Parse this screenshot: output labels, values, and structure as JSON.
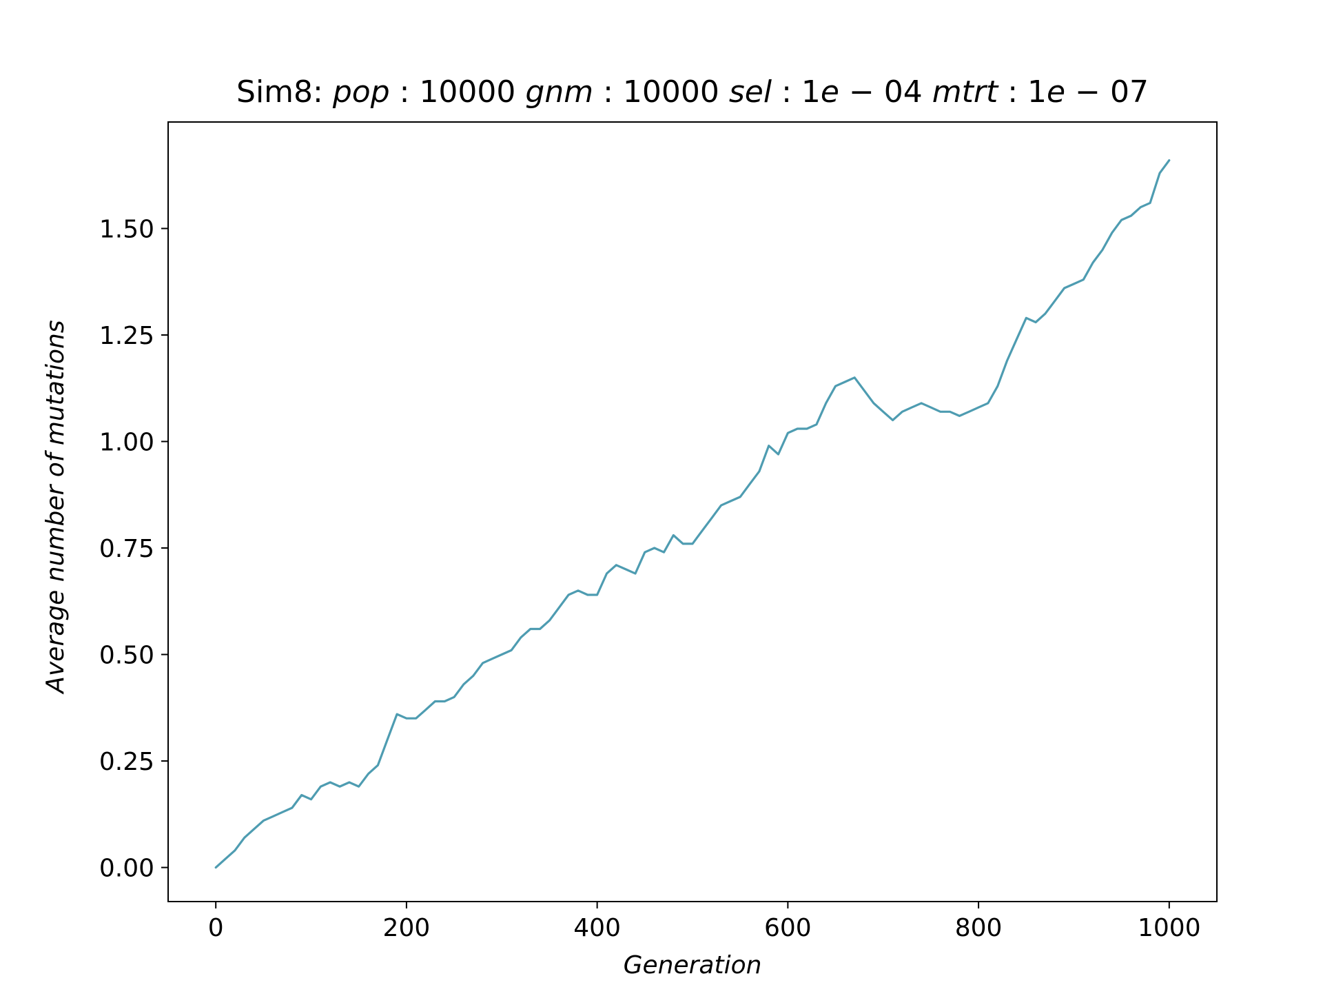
{
  "chart_data": {
    "type": "line",
    "title": {
      "parts": [
        {
          "text": "Sim8: ",
          "italic": false
        },
        {
          "text": "pop",
          "italic": true
        },
        {
          "text": " : 10000 ",
          "italic": false
        },
        {
          "text": "gnm",
          "italic": true
        },
        {
          "text": " : 10000 ",
          "italic": false
        },
        {
          "text": "sel",
          "italic": true
        },
        {
          "text": " : 1",
          "italic": false
        },
        {
          "text": "e",
          "italic": true
        },
        {
          "text": " − 04 ",
          "italic": false
        },
        {
          "text": "mtrt",
          "italic": true
        },
        {
          "text": " : 1",
          "italic": false
        },
        {
          "text": "e",
          "italic": true
        },
        {
          "text": " − 07",
          "italic": false
        }
      ]
    },
    "xlabel": "Generation",
    "ylabel": "Average number of mutations",
    "xlim": [
      -50,
      1050
    ],
    "ylim": [
      -0.08,
      1.75
    ],
    "xticks": [
      0,
      200,
      400,
      600,
      800,
      1000
    ],
    "xtick_labels": [
      "0",
      "200",
      "400",
      "600",
      "800",
      "1000"
    ],
    "yticks": [
      0.0,
      0.25,
      0.5,
      0.75,
      1.0,
      1.25,
      1.5
    ],
    "ytick_labels": [
      "0.00",
      "0.25",
      "0.50",
      "0.75",
      "1.00",
      "1.25",
      "1.50"
    ],
    "grid": false,
    "line_color": "#4e9cb1",
    "series": [
      {
        "x": [
          0,
          10,
          20,
          30,
          40,
          50,
          60,
          70,
          80,
          90,
          100,
          110,
          120,
          130,
          140,
          150,
          160,
          170,
          180,
          190,
          200,
          210,
          220,
          230,
          240,
          250,
          260,
          270,
          280,
          290,
          300,
          310,
          320,
          330,
          340,
          350,
          360,
          370,
          380,
          390,
          400,
          410,
          420,
          430,
          440,
          450,
          460,
          470,
          480,
          490,
          500,
          510,
          520,
          530,
          540,
          550,
          560,
          570,
          580,
          590,
          600,
          610,
          620,
          630,
          640,
          650,
          660,
          670,
          680,
          690,
          700,
          710,
          720,
          730,
          740,
          750,
          760,
          770,
          780,
          790,
          800,
          810,
          820,
          830,
          840,
          850,
          860,
          870,
          880,
          890,
          900,
          910,
          920,
          930,
          940,
          950,
          960,
          970,
          980,
          990,
          1000
        ],
        "y": [
          0.0,
          0.02,
          0.04,
          0.07,
          0.09,
          0.11,
          0.12,
          0.13,
          0.14,
          0.17,
          0.16,
          0.19,
          0.2,
          0.19,
          0.2,
          0.19,
          0.22,
          0.24,
          0.3,
          0.36,
          0.35,
          0.35,
          0.37,
          0.39,
          0.39,
          0.4,
          0.43,
          0.45,
          0.48,
          0.49,
          0.5,
          0.51,
          0.54,
          0.56,
          0.56,
          0.58,
          0.61,
          0.64,
          0.65,
          0.64,
          0.64,
          0.69,
          0.71,
          0.7,
          0.69,
          0.74,
          0.75,
          0.74,
          0.78,
          0.76,
          0.76,
          0.79,
          0.82,
          0.85,
          0.86,
          0.87,
          0.9,
          0.93,
          0.99,
          0.97,
          1.02,
          1.03,
          1.03,
          1.04,
          1.09,
          1.13,
          1.14,
          1.15,
          1.12,
          1.09,
          1.07,
          1.05,
          1.07,
          1.08,
          1.09,
          1.08,
          1.07,
          1.07,
          1.06,
          1.07,
          1.08,
          1.09,
          1.13,
          1.19,
          1.24,
          1.29,
          1.28,
          1.3,
          1.33,
          1.36,
          1.37,
          1.38,
          1.42,
          1.45,
          1.49,
          1.52,
          1.53,
          1.55,
          1.56,
          1.63,
          1.66
        ]
      }
    ]
  }
}
